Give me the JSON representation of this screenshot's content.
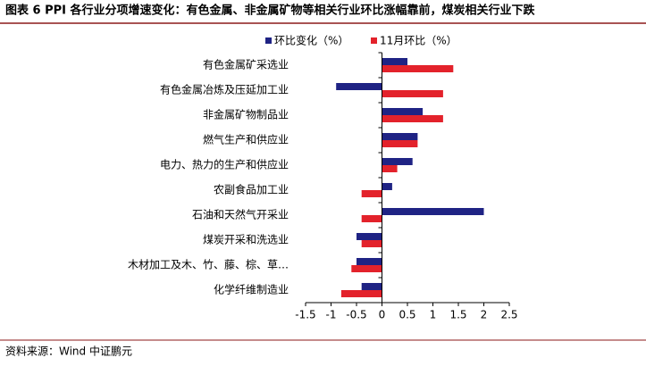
{
  "chart_data": {
    "type": "barh",
    "title": "图表 6   PPI 各行业分项增速变化：有色金属、非金属矿物等相关行业环比涨幅靠前，煤炭相关行业下跌",
    "source": "资料来源：Wind   中证鹏元",
    "categories": [
      "有色金属矿采选业",
      "有色金属冶炼及压延加工业",
      "非金属矿物制品业",
      "燃气生产和供应业",
      "电力、热力的生产和供应业",
      "农副食品加工业",
      "石油和天然气开采业",
      "煤炭开采和洗选业",
      "木材加工及木、竹、藤、棕、草…",
      "化学纤维制造业"
    ],
    "series": [
      {
        "name": "环比变化（%）",
        "color": "#1f2384",
        "values": [
          0.5,
          -0.9,
          0.8,
          0.7,
          0.6,
          0.2,
          2.0,
          -0.5,
          -0.5,
          -0.4
        ]
      },
      {
        "name": "11月环比（%）",
        "color": "#e3222b",
        "values": [
          1.4,
          1.2,
          1.2,
          0.7,
          0.3,
          -0.4,
          -0.4,
          -0.4,
          -0.6,
          -0.8
        ]
      }
    ],
    "xlim": [
      -1.5,
      2.5
    ],
    "xticks": [
      -1.5,
      -1,
      -0.5,
      0,
      0.5,
      1,
      1.5,
      2,
      2.5
    ]
  }
}
